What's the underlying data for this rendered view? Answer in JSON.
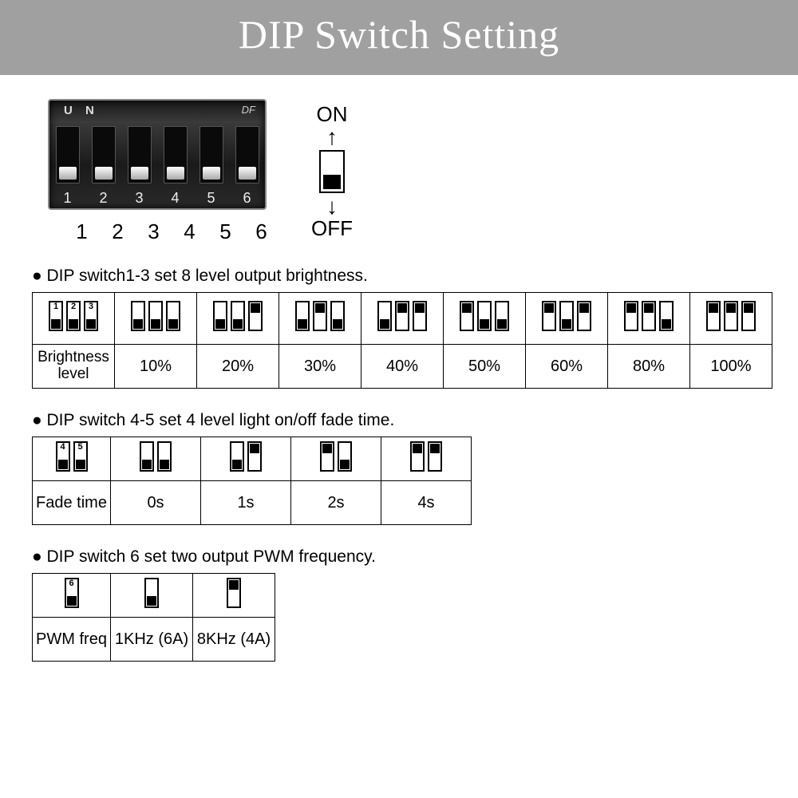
{
  "title": "DIP Switch Setting",
  "colors": {
    "titlebar_bg": "#a0a0a0",
    "titlebar_fg": "#ffffff",
    "border": "#000000"
  },
  "diagram": {
    "switch_numbers": [
      "1",
      "2",
      "3",
      "4",
      "5",
      "6"
    ],
    "legend_on": "ON",
    "legend_off": "OFF",
    "body_label": "U N",
    "brand": "DF"
  },
  "section1": {
    "header": "● DIP switch1-3 set 8 level output brightness.",
    "row_label": "Brightness level",
    "head_numbers": [
      "1",
      "2",
      "3"
    ],
    "combos": [
      {
        "states": [
          0,
          0,
          0
        ],
        "value": "10%"
      },
      {
        "states": [
          0,
          0,
          1
        ],
        "value": "20%"
      },
      {
        "states": [
          0,
          1,
          0
        ],
        "value": "30%"
      },
      {
        "states": [
          0,
          1,
          1
        ],
        "value": "40%"
      },
      {
        "states": [
          1,
          0,
          0
        ],
        "value": "50%"
      },
      {
        "states": [
          1,
          0,
          1
        ],
        "value": "60%"
      },
      {
        "states": [
          1,
          1,
          0
        ],
        "value": "80%"
      },
      {
        "states": [
          1,
          1,
          1
        ],
        "value": "100%"
      }
    ]
  },
  "section2": {
    "header": "● DIP switch 4-5 set 4 level light on/off fade time.",
    "row_label": "Fade time",
    "head_numbers": [
      "4",
      "5"
    ],
    "combos": [
      {
        "states": [
          0,
          0
        ],
        "value": "0s"
      },
      {
        "states": [
          0,
          1
        ],
        "value": "1s"
      },
      {
        "states": [
          1,
          0
        ],
        "value": "2s"
      },
      {
        "states": [
          1,
          1
        ],
        "value": "4s"
      }
    ]
  },
  "section3": {
    "header": "● DIP switch 6 set two output PWM frequency.",
    "row_label": "PWM freq",
    "head_numbers": [
      "6"
    ],
    "combos": [
      {
        "states": [
          0
        ],
        "value": "1KHz (6A)"
      },
      {
        "states": [
          1
        ],
        "value": "8KHz (4A)"
      }
    ]
  }
}
